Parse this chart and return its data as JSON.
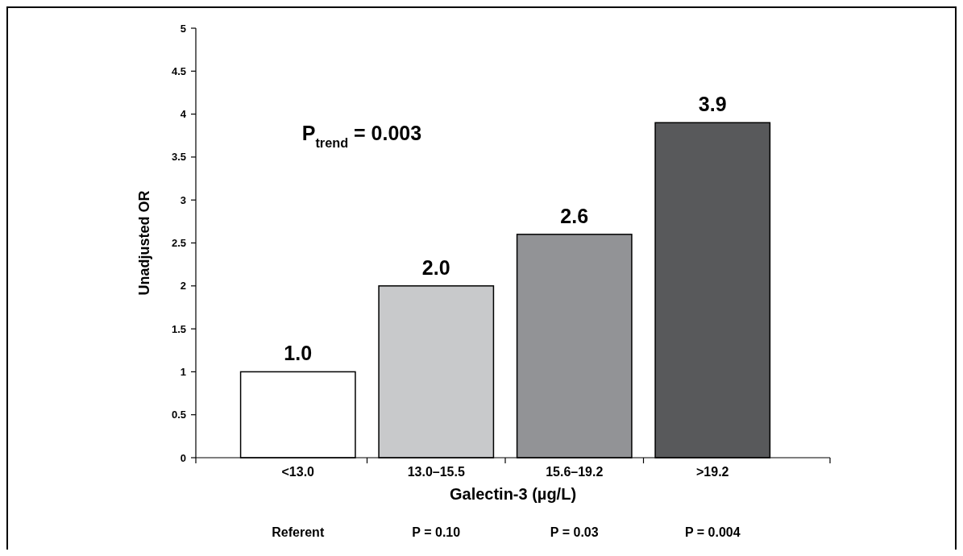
{
  "chart_data": {
    "type": "bar",
    "xlabel": "Galectin-3 (µg/L)",
    "ylabel": "Unadjusted OR",
    "categories": [
      "<13.0",
      "13.0–15.5",
      "15.6–19.2",
      ">19.2"
    ],
    "values": [
      1.0,
      2.0,
      2.6,
      3.9
    ],
    "colors": [
      "#ffffff",
      "#c8c9cb",
      "#929396",
      "#58595b"
    ],
    "value_labels": [
      "1.0",
      "2.0",
      "2.6",
      "3.9"
    ],
    "ylim": [
      0,
      5
    ],
    "yticks": [
      0,
      0.5,
      1,
      1.5,
      2,
      2.5,
      3,
      3.5,
      4,
      4.5,
      5
    ],
    "grid": false,
    "annotations": [
      "P$_{trend}$ = 0.003",
      "Referent",
      "P = 0.10",
      "P = 0.03",
      "P = 0.004"
    ]
  }
}
